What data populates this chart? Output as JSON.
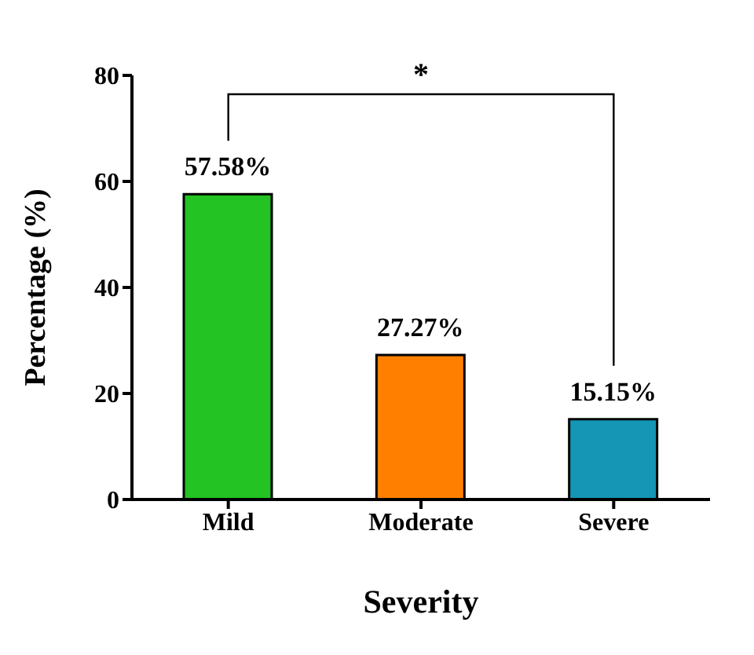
{
  "chart_data": {
    "type": "bar",
    "xlabel": "Severity",
    "ylabel": "Percentage (%)",
    "categories": [
      "Mild",
      "Moderate",
      "Severe"
    ],
    "values": [
      57.58,
      27.27,
      15.15
    ],
    "colors": [
      "#22c322",
      "#ff8000",
      "#1496b4"
    ],
    "value_labels": [
      "57.58%",
      "27.27%",
      "15.15%"
    ],
    "ylim": [
      0,
      80
    ],
    "yticks": [
      0,
      20,
      40,
      60,
      80
    ],
    "annotations": [
      "*"
    ]
  }
}
